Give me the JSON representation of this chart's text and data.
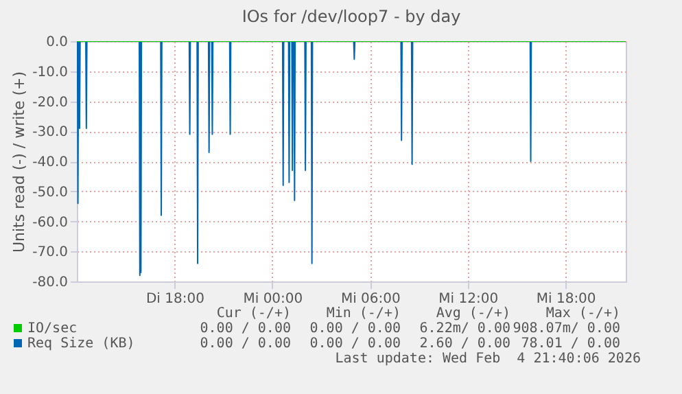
{
  "chart_data": {
    "type": "line",
    "title": "IOs for /dev/loop7 - by day",
    "ylabel": "Units read (-) / write (+)",
    "xlim": [
      "2026-02-03T12:00",
      "2026-02-04T21:42"
    ],
    "xticks": [
      {
        "value": "2026-02-03T18:00",
        "label": "Di 18:00"
      },
      {
        "value": "2026-02-04T00:00",
        "label": "Mi 00:00"
      },
      {
        "value": "2026-02-04T06:00",
        "label": "Mi 06:00"
      },
      {
        "value": "2026-02-04T12:00",
        "label": "Mi 12:00"
      },
      {
        "value": "2026-02-04T18:00",
        "label": "Mi 18:00"
      }
    ],
    "ylim": [
      -80,
      0
    ],
    "yticks": [
      {
        "value": -80,
        "label": "-80.0"
      },
      {
        "value": -70,
        "label": "-70.0"
      },
      {
        "value": -60,
        "label": "-60.0"
      },
      {
        "value": -50,
        "label": "-50.0"
      },
      {
        "value": -40,
        "label": "-40.0"
      },
      {
        "value": -30,
        "label": "-30.0"
      },
      {
        "value": -20,
        "label": "-20.0"
      },
      {
        "value": -10,
        "label": "-10.0"
      },
      {
        "value": 0,
        "label": "0.0"
      }
    ],
    "grid": true,
    "legend": "bottom",
    "line_style": "solid",
    "series": [
      {
        "name": "IO/sec",
        "color": "#00cc00",
        "x": [
          "2026-02-03T12:00",
          "2026-02-04T21:42"
        ],
        "values": [
          0,
          0
        ]
      },
      {
        "name": "Req Size (KB)",
        "color": "#0066b3",
        "x": [
          "2026-02-03T12:00",
          "2026-02-03T12:02",
          "2026-02-03T12:04",
          "2026-02-03T12:06",
          "2026-02-03T12:08",
          "2026-02-03T12:10",
          "2026-02-03T12:12",
          "2026-02-03T12:33",
          "2026-02-03T12:35",
          "2026-02-03T12:37",
          "2026-02-03T15:50",
          "2026-02-03T15:52",
          "2026-02-03T15:54",
          "2026-02-03T15:56",
          "2026-02-03T15:58",
          "2026-02-03T17:09",
          "2026-02-03T17:11",
          "2026-02-03T17:13",
          "2026-02-03T18:54",
          "2026-02-03T18:56",
          "2026-02-03T18:58",
          "2026-02-03T19:23",
          "2026-02-03T19:25",
          "2026-02-03T19:27",
          "2026-02-03T20:05",
          "2026-02-03T20:07",
          "2026-02-03T20:09",
          "2026-02-03T20:17",
          "2026-02-03T20:19",
          "2026-02-03T20:21",
          "2026-02-03T21:23",
          "2026-02-03T21:25",
          "2026-02-03T21:27",
          "2026-02-04T00:38",
          "2026-02-04T00:40",
          "2026-02-04T00:42",
          "2026-02-04T01:00",
          "2026-02-04T01:02",
          "2026-02-04T01:04",
          "2026-02-04T01:12",
          "2026-02-04T01:14",
          "2026-02-04T01:16",
          "2026-02-04T01:20",
          "2026-02-04T01:22",
          "2026-02-04T01:24",
          "2026-02-04T02:00",
          "2026-02-04T02:02",
          "2026-02-04T02:04",
          "2026-02-04T02:24",
          "2026-02-04T02:26",
          "2026-02-04T02:28",
          "2026-02-04T05:00",
          "2026-02-04T05:02",
          "2026-02-04T05:04",
          "2026-02-04T07:54",
          "2026-02-04T07:56",
          "2026-02-04T07:58",
          "2026-02-04T08:33",
          "2026-02-04T08:35",
          "2026-02-04T08:37",
          "2026-02-04T15:50",
          "2026-02-04T15:52",
          "2026-02-04T15:54"
        ],
        "values": [
          0,
          0,
          -54,
          0,
          0,
          -29,
          0,
          0,
          -29,
          0,
          0,
          -78,
          0,
          -77,
          0,
          0,
          -58,
          0,
          0,
          -31,
          0,
          0,
          -74,
          0,
          0,
          -37,
          0,
          0,
          -31,
          0,
          0,
          -31,
          0,
          0,
          -48,
          0,
          0,
          -47,
          0,
          0,
          -43,
          0,
          0,
          -53,
          0,
          0,
          -43,
          0,
          0,
          -74,
          0,
          0,
          -6,
          0,
          0,
          -33,
          0,
          0,
          -41,
          0,
          0,
          -40,
          0
        ]
      }
    ],
    "annotations": [
      "Cur (-/+)",
      "Min (-/+)",
      "Avg (-/+)",
      "Max (-/+)",
      "0.00 / 0.00",
      "0.00 / 0.00",
      "6.22m/ 0.00",
      "908.07m/ 0.00",
      "0.00 / 0.00",
      "0.00 / 0.00",
      "2.60 / 0.00",
      "78.01 / 0.00",
      "Last update: Wed Feb  4 21:40:06 2026"
    ]
  }
}
